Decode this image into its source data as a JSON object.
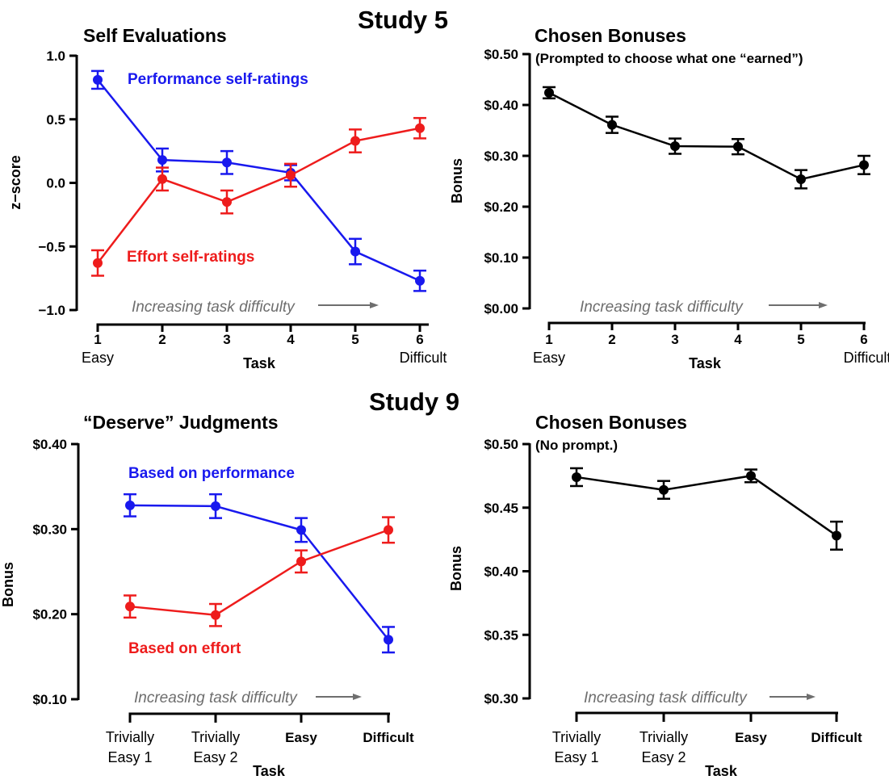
{
  "figure": {
    "study_labels": [
      "Study 5",
      "Study 9"
    ],
    "difficulty_note": "Increasing task difficulty"
  },
  "colors": {
    "blue": "#1919ee",
    "red": "#ee1c1c",
    "black": "#000000",
    "arrow": "#6e6e6e"
  },
  "chart_data": [
    {
      "type": "line",
      "title": "Self Evaluations",
      "subtitle": "",
      "ylabel": "z−score",
      "xlabel": "Task",
      "ylim": [
        -1.0,
        1.0
      ],
      "yticks": [
        1.0,
        0.5,
        0.0,
        -0.5,
        -1.0
      ],
      "ytick_labels": [
        "1.0",
        "0.5",
        "0.0",
        "−0.5",
        "−1.0"
      ],
      "categories": [
        "1",
        "2",
        "3",
        "4",
        "5",
        "6"
      ],
      "category_notes": {
        "first": "Easy",
        "last": "Difficult"
      },
      "annotation": "Increasing task difficulty",
      "series": [
        {
          "name": "Performance self-ratings",
          "color": "#1919ee",
          "values": [
            0.81,
            0.18,
            0.16,
            0.08,
            -0.54,
            -0.77
          ],
          "errors": [
            0.07,
            0.09,
            0.09,
            0.06,
            0.1,
            0.08
          ]
        },
        {
          "name": "Effort self-ratings",
          "color": "#ee1c1c",
          "values": [
            -0.63,
            0.03,
            -0.15,
            0.06,
            0.33,
            0.43
          ],
          "errors": [
            0.1,
            0.09,
            0.09,
            0.09,
            0.09,
            0.08
          ]
        }
      ]
    },
    {
      "type": "line",
      "title": "Chosen Bonuses",
      "subtitle": "(Prompted to choose what one “earned”)",
      "ylabel": "Bonus",
      "xlabel": "Task",
      "ylim": [
        0.0,
        0.5
      ],
      "yticks": [
        0.5,
        0.4,
        0.3,
        0.2,
        0.1,
        0.0
      ],
      "ytick_labels": [
        "$0.50",
        "$0.40",
        "$0.30",
        "$0.20",
        "$0.10",
        "$0.00"
      ],
      "categories": [
        "1",
        "2",
        "3",
        "4",
        "5",
        "6"
      ],
      "category_notes": {
        "first": "Easy",
        "last": "Difficult"
      },
      "annotation": "Increasing task difficulty",
      "series": [
        {
          "name": "",
          "color": "#000000",
          "values": [
            0.424,
            0.361,
            0.319,
            0.318,
            0.254,
            0.282
          ],
          "errors": [
            0.011,
            0.016,
            0.015,
            0.015,
            0.018,
            0.018
          ]
        }
      ]
    },
    {
      "type": "line",
      "title": "“Deserve” Judgments",
      "subtitle": "",
      "ylabel": "Bonus",
      "xlabel": "Task",
      "ylim": [
        0.1,
        0.4
      ],
      "yticks": [
        0.4,
        0.3,
        0.2,
        0.1
      ],
      "ytick_labels": [
        "$0.40",
        "$0.30",
        "$0.20",
        "$0.10"
      ],
      "categories": [
        "Trivially\nEasy 1",
        "Trivially\nEasy 2",
        "Easy",
        "Difficult"
      ],
      "annotation": "Increasing task difficulty",
      "series": [
        {
          "name": "Based on performance",
          "color": "#1919ee",
          "values": [
            0.328,
            0.327,
            0.299,
            0.17
          ],
          "errors": [
            0.013,
            0.014,
            0.014,
            0.015
          ]
        },
        {
          "name": "Based on effort",
          "color": "#ee1c1c",
          "values": [
            0.209,
            0.199,
            0.262,
            0.299
          ],
          "errors": [
            0.013,
            0.013,
            0.013,
            0.015
          ]
        }
      ]
    },
    {
      "type": "line",
      "title": "Chosen Bonuses",
      "subtitle": "(No prompt.)",
      "ylabel": "Bonus",
      "xlabel": "Task",
      "ylim": [
        0.3,
        0.5
      ],
      "yticks": [
        0.5,
        0.45,
        0.4,
        0.35,
        0.3
      ],
      "ytick_labels": [
        "$0.50",
        "$0.45",
        "$0.40",
        "$0.35",
        "$0.30"
      ],
      "categories": [
        "Trivially\nEasy 1",
        "Trivially\nEasy 2",
        "Easy",
        "Difficult"
      ],
      "annotation": "Increasing task difficulty",
      "series": [
        {
          "name": "",
          "color": "#000000",
          "values": [
            0.474,
            0.464,
            0.475,
            0.428
          ],
          "errors": [
            0.007,
            0.007,
            0.005,
            0.011
          ]
        }
      ]
    }
  ]
}
